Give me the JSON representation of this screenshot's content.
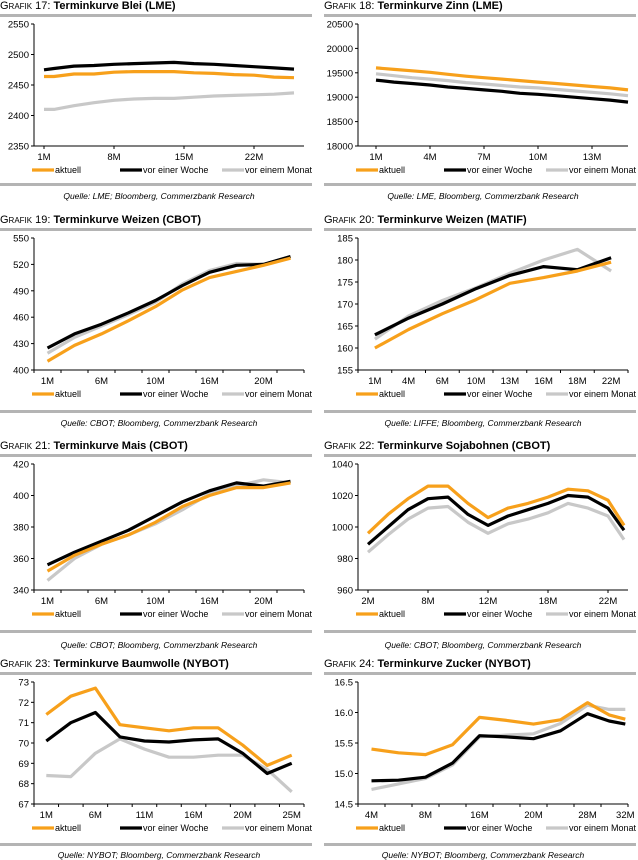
{
  "legend": [
    "aktuell",
    "vor einer Woche",
    "vor einem Monat"
  ],
  "colors": {
    "aktuell": "#f7a01b",
    "woche": "#000000",
    "monat": "#c8c8c8",
    "rule": "#b4b4b4"
  },
  "chart_data": [
    {
      "id": "g17",
      "prefix": "Grafik 17:",
      "title": "Terminkurve Blei (LME)",
      "type": "line",
      "source": "Quelle: LME; Bloomberg, Commerzbank Research",
      "ylim": [
        2350,
        2550
      ],
      "yticks": [
        2350,
        2400,
        2450,
        2500,
        2550
      ],
      "xlim": [
        0,
        27
      ],
      "xticks": [
        {
          "x": 1,
          "label": "1M"
        },
        {
          "x": 8,
          "label": "8M"
        },
        {
          "x": 15,
          "label": "15M"
        },
        {
          "x": 22,
          "label": "22M"
        }
      ],
      "x": [
        1,
        2,
        4,
        6,
        8,
        10,
        12,
        14,
        16,
        18,
        20,
        22,
        24,
        26
      ],
      "series": [
        {
          "name": "aktuell",
          "values": [
            2464,
            2464,
            2468,
            2468,
            2471,
            2472,
            2472,
            2472,
            2470,
            2469,
            2467,
            2466,
            2463,
            2462
          ]
        },
        {
          "name": "vor einer Woche",
          "values": [
            2475,
            2477,
            2481,
            2482,
            2484,
            2485,
            2486,
            2487,
            2485,
            2484,
            2482,
            2480,
            2478,
            2476
          ]
        },
        {
          "name": "vor einem Monat",
          "values": [
            2410,
            2410,
            2416,
            2421,
            2425,
            2427,
            2428,
            2428,
            2430,
            2432,
            2433,
            2434,
            2435,
            2437
          ]
        }
      ]
    },
    {
      "id": "g18",
      "prefix": "Grafik 18:",
      "title": "Terminkurve Zinn (LME)",
      "type": "line",
      "source": "Quelle: LME, Bloomberg, Commerzbank Research",
      "ylim": [
        18000,
        20500
      ],
      "yticks": [
        18000,
        18500,
        19000,
        19500,
        20000,
        20500
      ],
      "xlim": [
        0,
        15
      ],
      "xticks": [
        {
          "x": 1,
          "label": "1M"
        },
        {
          "x": 4,
          "label": "4M"
        },
        {
          "x": 7,
          "label": "7M"
        },
        {
          "x": 10,
          "label": "10M"
        },
        {
          "x": 13,
          "label": "13M"
        }
      ],
      "x": [
        1,
        2,
        3,
        4,
        5,
        6,
        7,
        8,
        9,
        10,
        11,
        12,
        13,
        14,
        15
      ],
      "series": [
        {
          "name": "aktuell",
          "values": [
            19600,
            19570,
            19540,
            19510,
            19470,
            19430,
            19400,
            19370,
            19340,
            19310,
            19280,
            19250,
            19220,
            19190,
            19150
          ]
        },
        {
          "name": "vor einer Woche",
          "values": [
            19350,
            19310,
            19280,
            19250,
            19210,
            19180,
            19150,
            19120,
            19080,
            19060,
            19030,
            19000,
            18970,
            18940,
            18900
          ]
        },
        {
          "name": "vor einem Monat",
          "values": [
            19480,
            19440,
            19400,
            19370,
            19340,
            19300,
            19270,
            19240,
            19210,
            19190,
            19160,
            19130,
            19100,
            19070,
            19030
          ]
        }
      ]
    },
    {
      "id": "g19",
      "prefix": "Grafik 19:",
      "title": "Terminkurve Weizen (CBOT)",
      "type": "line",
      "source": "Quelle: CBOT; Bloomberg, Commerzbank Research",
      "ylim": [
        400,
        550
      ],
      "yticks": [
        400,
        430,
        460,
        490,
        520,
        550
      ],
      "xlim": [
        0,
        10
      ],
      "xticks": [
        {
          "x": 0.5,
          "label": "1M"
        },
        {
          "x": 2.5,
          "label": "6M"
        },
        {
          "x": 4.5,
          "label": "10M"
        },
        {
          "x": 6.5,
          "label": "16M"
        },
        {
          "x": 8.5,
          "label": "20M"
        }
      ],
      "tickmarks": [
        0,
        1,
        2,
        3,
        4,
        5,
        6,
        7,
        8,
        9,
        10
      ],
      "x": [
        0.5,
        1.5,
        2.5,
        3.5,
        4.5,
        5.5,
        6.5,
        7.5,
        8.5,
        9.5
      ],
      "series": [
        {
          "name": "aktuell",
          "values": [
            410,
            428,
            441,
            456,
            472,
            491,
            505,
            512,
            519,
            527
          ]
        },
        {
          "name": "vor einer Woche",
          "values": [
            425,
            441,
            452,
            465,
            479,
            496,
            511,
            519,
            520,
            529
          ]
        },
        {
          "name": "vor einem Monat",
          "values": [
            419,
            437,
            450,
            463,
            477,
            498,
            513,
            521,
            520,
            529
          ]
        }
      ]
    },
    {
      "id": "g20",
      "prefix": "Grafik 20:",
      "title": "Terminkurve Weizen (MATIF)",
      "type": "line",
      "source": "Quelle: LIFFE; Bloomberg, Commerzbank Research",
      "ylim": [
        155,
        185
      ],
      "yticks": [
        155,
        160,
        165,
        170,
        175,
        180,
        185
      ],
      "xlim": [
        0,
        8
      ],
      "xticks": [
        {
          "x": 0.5,
          "label": "1M"
        },
        {
          "x": 1.5,
          "label": "4M"
        },
        {
          "x": 2.5,
          "label": "6M"
        },
        {
          "x": 3.5,
          "label": "10M"
        },
        {
          "x": 4.5,
          "label": "13M"
        },
        {
          "x": 5.5,
          "label": "16M"
        },
        {
          "x": 6.5,
          "label": "18M"
        },
        {
          "x": 7.5,
          "label": "22M"
        }
      ],
      "tickmarks": [
        0,
        1,
        2,
        3,
        4,
        5,
        6,
        7,
        8
      ],
      "x": [
        0.5,
        1.5,
        2.5,
        3.5,
        4.5,
        5.5,
        6.5,
        7.5
      ],
      "series": [
        {
          "name": "aktuell",
          "values": [
            160,
            164.2,
            167.8,
            171,
            174.7,
            176,
            177.5,
            179.5
          ]
        },
        {
          "name": "vor einer Woche",
          "values": [
            163,
            166.8,
            170,
            173.5,
            176.5,
            178.5,
            177.8,
            180.5
          ]
        },
        {
          "name": "vor einem Monat",
          "values": [
            162,
            167.3,
            170.8,
            173.7,
            177,
            180,
            182.4,
            177.5
          ]
        }
      ]
    },
    {
      "id": "g21",
      "prefix": "Grafik 21:",
      "title": "Terminkurve Mais (CBOT)",
      "type": "line",
      "source": "Quelle: CBOT; Bloomberg, Commerzbank Research",
      "ylim": [
        340,
        420
      ],
      "yticks": [
        340,
        360,
        380,
        400,
        420
      ],
      "xlim": [
        0,
        10
      ],
      "xticks": [
        {
          "x": 0.5,
          "label": "1M"
        },
        {
          "x": 2.5,
          "label": "6M"
        },
        {
          "x": 4.5,
          "label": "10M"
        },
        {
          "x": 6.5,
          "label": "16M"
        },
        {
          "x": 8.5,
          "label": "20M"
        }
      ],
      "tickmarks": [
        0,
        1,
        2,
        3,
        4,
        5,
        6,
        7,
        8,
        9,
        10
      ],
      "x": [
        0.5,
        1.5,
        2.5,
        3.5,
        4.5,
        5.5,
        6.5,
        7.5,
        8.5,
        9.5
      ],
      "series": [
        {
          "name": "aktuell",
          "values": [
            352,
            362,
            369,
            375,
            383,
            393,
            400,
            405,
            405,
            408
          ]
        },
        {
          "name": "vor einer Woche",
          "values": [
            356,
            364,
            371,
            378,
            387,
            396,
            403,
            408,
            406,
            409
          ]
        },
        {
          "name": "vor einem Monat",
          "values": [
            346,
            360,
            369,
            375,
            382,
            391,
            401,
            406,
            410,
            408
          ]
        }
      ]
    },
    {
      "id": "g22",
      "prefix": "Grafik 22:",
      "title": "Terminkurve Sojabohnen (CBOT)",
      "type": "line",
      "source": "Quelle: CBOT; Bloomberg, Commerzbank Research",
      "ylim": [
        960,
        1040
      ],
      "yticks": [
        960,
        980,
        1000,
        1020,
        1040
      ],
      "xlim": [
        0,
        13.5
      ],
      "xticks": [
        {
          "x": 0.5,
          "label": "2M"
        },
        {
          "x": 3.5,
          "label": "8M"
        },
        {
          "x": 6.5,
          "label": "12M"
        },
        {
          "x": 9.5,
          "label": "18M"
        },
        {
          "x": 12.5,
          "label": "22M"
        }
      ],
      "x": [
        0.5,
        1.5,
        2.5,
        3.5,
        4.5,
        5.5,
        6.5,
        7.5,
        8.5,
        9.5,
        10.5,
        11.5,
        12.5,
        13.3
      ],
      "series": [
        {
          "name": "aktuell",
          "values": [
            996,
            1008,
            1018,
            1026,
            1026,
            1015,
            1006,
            1012,
            1015,
            1019,
            1024,
            1023,
            1017,
            1001
          ]
        },
        {
          "name": "vor einer Woche",
          "values": [
            989,
            1000,
            1011,
            1018,
            1019,
            1008,
            1001,
            1007,
            1011,
            1015,
            1020,
            1019,
            1012,
            998
          ]
        },
        {
          "name": "vor einem Monat",
          "values": [
            984,
            995,
            1005,
            1012,
            1013,
            1003,
            996,
            1002,
            1005,
            1009,
            1015,
            1012,
            1007,
            992
          ]
        }
      ]
    },
    {
      "id": "g23",
      "prefix": "Grafik 23:",
      "title": "Terminkurve Baumwolle (NYBOT)",
      "type": "line",
      "source": "Quelle: NYBOT; Bloomberg, Commerzbank Research",
      "ylim": [
        67,
        73
      ],
      "yticks": [
        67,
        68,
        69,
        70,
        71,
        72,
        73
      ],
      "xlim": [
        0,
        11
      ],
      "xticks": [
        {
          "x": 0.5,
          "label": "1M"
        },
        {
          "x": 2.5,
          "label": "6M"
        },
        {
          "x": 4.5,
          "label": "11M"
        },
        {
          "x": 6.5,
          "label": "16M"
        },
        {
          "x": 8.5,
          "label": "20M"
        },
        {
          "x": 10.5,
          "label": "25M"
        }
      ],
      "tickmarks": [
        0,
        1,
        2,
        3,
        4,
        5,
        6,
        7,
        8,
        9,
        10,
        11
      ],
      "x": [
        0.5,
        1.5,
        2.5,
        3.5,
        4.5,
        5.5,
        6.5,
        7.5,
        8.5,
        9.5,
        10.5
      ],
      "series": [
        {
          "name": "aktuell",
          "values": [
            71.4,
            72.3,
            72.7,
            70.9,
            70.75,
            70.6,
            70.75,
            70.75,
            69.9,
            68.9,
            69.4
          ]
        },
        {
          "name": "vor einer Woche",
          "values": [
            70.1,
            71.0,
            71.5,
            70.3,
            70.1,
            70.05,
            70.15,
            70.2,
            69.5,
            68.5,
            69.0
          ]
        },
        {
          "name": "vor einem Monat",
          "values": [
            68.4,
            68.35,
            69.5,
            70.2,
            69.7,
            69.3,
            69.3,
            69.4,
            69.4,
            68.7,
            67.6
          ]
        }
      ]
    },
    {
      "id": "g24",
      "prefix": "Grafik 24:",
      "title": "Terminkurve Zucker (NYBOT)",
      "type": "line",
      "source": "Quelle: NYBOT; Bloomberg, Commerzbank Research",
      "ylim": [
        14.5,
        16.5
      ],
      "yticks": [
        14.5,
        15.0,
        15.5,
        16.0,
        16.5
      ],
      "xlim": [
        0,
        10
      ],
      "xticks": [
        {
          "x": 0.5,
          "label": "4M"
        },
        {
          "x": 2.5,
          "label": "8M"
        },
        {
          "x": 4.5,
          "label": "16M"
        },
        {
          "x": 6.5,
          "label": "20M"
        },
        {
          "x": 8.5,
          "label": "28M"
        },
        {
          "x": 9.9,
          "label": "32M"
        }
      ],
      "tickmarks": [
        0,
        1,
        2,
        3,
        4,
        5,
        6,
        7,
        8,
        9,
        10
      ],
      "x": [
        0.5,
        1.5,
        2.5,
        3.5,
        4.5,
        5.5,
        6.5,
        7.5,
        8.5,
        9.3,
        9.9
      ],
      "series": [
        {
          "name": "aktuell",
          "values": [
            15.4,
            15.34,
            15.31,
            15.47,
            15.92,
            15.87,
            15.81,
            15.88,
            16.16,
            15.96,
            15.89
          ]
        },
        {
          "name": "vor einer Woche",
          "values": [
            14.88,
            14.89,
            14.94,
            15.17,
            15.62,
            15.6,
            15.57,
            15.7,
            15.98,
            15.86,
            15.81
          ]
        },
        {
          "name": "vor einem Monat",
          "values": [
            14.74,
            14.83,
            14.92,
            15.14,
            15.6,
            15.63,
            15.65,
            15.82,
            16.12,
            16.05,
            16.05
          ]
        }
      ]
    }
  ]
}
